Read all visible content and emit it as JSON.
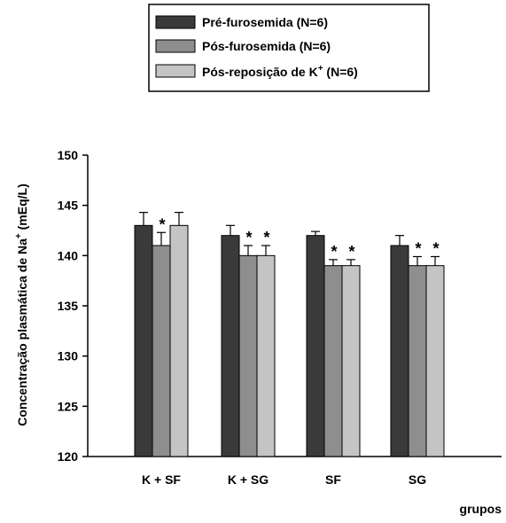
{
  "chart_data": {
    "type": "bar",
    "xlabel": "grupos",
    "ylabel_main": "Concentração plasmática de Na",
    "ylabel_sup": "+",
    "ylabel_unit": " (mEq/L)",
    "ylim": [
      120,
      150
    ],
    "yticks": [
      120,
      125,
      130,
      135,
      140,
      145,
      150
    ],
    "categories": [
      "K + SF",
      "K + SG",
      "SF",
      "SG"
    ],
    "series": [
      {
        "name": "Pré-furosemida (N=6)",
        "values": [
          143,
          142,
          142,
          141
        ],
        "errors": [
          1.3,
          1.0,
          0.4,
          1.0
        ],
        "significant": [
          false,
          false,
          false,
          false
        ],
        "color": "#3a3a3a"
      },
      {
        "name": "Pós-furosemida (N=6)",
        "values": [
          141,
          140,
          139,
          139
        ],
        "errors": [
          1.3,
          1.0,
          0.6,
          0.9
        ],
        "significant": [
          true,
          true,
          true,
          true
        ],
        "color": "#8e8e8e"
      },
      {
        "name": "Pós-reposição de K",
        "name_sup": "+",
        "name_suffix": " (N=6)",
        "values": [
          143,
          140,
          139,
          139
        ],
        "errors": [
          1.3,
          1.0,
          0.6,
          0.9
        ],
        "significant": [
          false,
          true,
          true,
          true
        ],
        "color": "#c4c4c4"
      }
    ],
    "significance_marker": "*",
    "grid": false,
    "legend_position": "top-center"
  }
}
